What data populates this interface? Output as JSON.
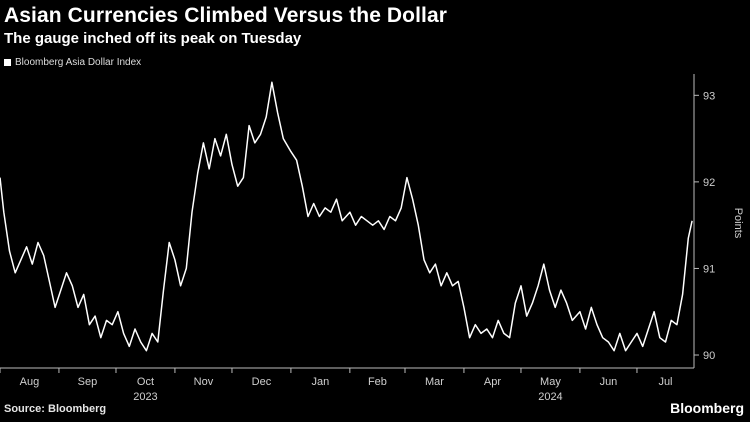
{
  "chart_data": {
    "type": "line",
    "title": "Asian Currencies Climbed Versus the Dollar",
    "subtitle": "The gauge inched off its peak on Tuesday",
    "legend": [
      "Bloomberg Asia Dollar Index"
    ],
    "legend_position": "top-left",
    "ylabel": "Points",
    "ylim": [
      89.85,
      93.2
    ],
    "yticks": [
      90,
      91,
      92,
      93
    ],
    "grid": false,
    "xlim": [
      "2023-08-01",
      "2024-07-31"
    ],
    "month_labels": [
      "Aug",
      "Sep",
      "Oct",
      "Nov",
      "Dec",
      "Jan",
      "Feb",
      "Mar",
      "Apr",
      "May",
      "Jun",
      "Jul"
    ],
    "month_dates": [
      "2023-08-01",
      "2023-09-01",
      "2023-10-01",
      "2023-11-01",
      "2023-12-01",
      "2024-01-01",
      "2024-02-01",
      "2024-03-01",
      "2024-04-01",
      "2024-05-01",
      "2024-06-01",
      "2024-07-01"
    ],
    "year_labels": [
      {
        "label": "2023",
        "date": "2023-10-01"
      },
      {
        "label": "2024",
        "date": "2024-05-01"
      }
    ],
    "series": [
      {
        "name": "Bloomberg Asia Dollar Index",
        "color": "#ffffff",
        "x": [
          "2023-08-01",
          "2023-08-03",
          "2023-08-06",
          "2023-08-09",
          "2023-08-12",
          "2023-08-15",
          "2023-08-18",
          "2023-08-21",
          "2023-08-24",
          "2023-08-27",
          "2023-08-30",
          "2023-09-02",
          "2023-09-05",
          "2023-09-08",
          "2023-09-11",
          "2023-09-14",
          "2023-09-17",
          "2023-09-20",
          "2023-09-23",
          "2023-09-26",
          "2023-09-29",
          "2023-10-02",
          "2023-10-05",
          "2023-10-08",
          "2023-10-11",
          "2023-10-14",
          "2023-10-17",
          "2023-10-20",
          "2023-10-23",
          "2023-10-26",
          "2023-10-29",
          "2023-11-01",
          "2023-11-04",
          "2023-11-07",
          "2023-11-10",
          "2023-11-13",
          "2023-11-16",
          "2023-11-19",
          "2023-11-22",
          "2023-11-25",
          "2023-11-28",
          "2023-12-01",
          "2023-12-04",
          "2023-12-07",
          "2023-12-10",
          "2023-12-13",
          "2023-12-16",
          "2023-12-19",
          "2023-12-22",
          "2023-12-25",
          "2023-12-28",
          "2024-01-01",
          "2024-01-04",
          "2024-01-07",
          "2024-01-10",
          "2024-01-13",
          "2024-01-16",
          "2024-01-19",
          "2024-01-22",
          "2024-01-25",
          "2024-01-28",
          "2024-02-01",
          "2024-02-04",
          "2024-02-07",
          "2024-02-10",
          "2024-02-13",
          "2024-02-16",
          "2024-02-19",
          "2024-02-22",
          "2024-02-25",
          "2024-02-28",
          "2024-03-02",
          "2024-03-05",
          "2024-03-08",
          "2024-03-11",
          "2024-03-14",
          "2024-03-17",
          "2024-03-20",
          "2024-03-23",
          "2024-03-26",
          "2024-03-29",
          "2024-04-01",
          "2024-04-04",
          "2024-04-07",
          "2024-04-10",
          "2024-04-13",
          "2024-04-16",
          "2024-04-19",
          "2024-04-22",
          "2024-04-25",
          "2024-04-28",
          "2024-05-01",
          "2024-05-04",
          "2024-05-07",
          "2024-05-10",
          "2024-05-13",
          "2024-05-16",
          "2024-05-19",
          "2024-05-22",
          "2024-05-25",
          "2024-05-28",
          "2024-06-01",
          "2024-06-04",
          "2024-06-07",
          "2024-06-10",
          "2024-06-13",
          "2024-06-16",
          "2024-06-19",
          "2024-06-22",
          "2024-06-25",
          "2024-06-28",
          "2024-07-01",
          "2024-07-04",
          "2024-07-07",
          "2024-07-10",
          "2024-07-13",
          "2024-07-16",
          "2024-07-19",
          "2024-07-22",
          "2024-07-25",
          "2024-07-28",
          "2024-07-30"
        ],
        "values": [
          92.05,
          91.65,
          91.2,
          90.95,
          91.1,
          91.25,
          91.05,
          91.3,
          91.15,
          90.85,
          90.55,
          90.75,
          90.95,
          90.8,
          90.55,
          90.7,
          90.35,
          90.45,
          90.2,
          90.4,
          90.35,
          90.5,
          90.25,
          90.1,
          90.3,
          90.15,
          90.05,
          90.25,
          90.15,
          90.75,
          91.3,
          91.1,
          90.8,
          91.0,
          91.65,
          92.1,
          92.45,
          92.15,
          92.5,
          92.3,
          92.55,
          92.2,
          91.95,
          92.05,
          92.65,
          92.45,
          92.55,
          92.75,
          93.15,
          92.8,
          92.5,
          92.35,
          92.25,
          91.95,
          91.6,
          91.75,
          91.6,
          91.7,
          91.65,
          91.8,
          91.55,
          91.65,
          91.5,
          91.6,
          91.55,
          91.5,
          91.55,
          91.45,
          91.6,
          91.55,
          91.7,
          92.05,
          91.8,
          91.5,
          91.1,
          90.95,
          91.05,
          90.8,
          90.95,
          90.8,
          90.85,
          90.55,
          90.2,
          90.35,
          90.25,
          90.3,
          90.2,
          90.4,
          90.25,
          90.2,
          90.6,
          90.8,
          90.45,
          90.6,
          90.8,
          91.05,
          90.75,
          90.55,
          90.75,
          90.6,
          90.4,
          90.5,
          90.3,
          90.55,
          90.35,
          90.2,
          90.15,
          90.05,
          90.25,
          90.05,
          90.15,
          90.25,
          90.1,
          90.3,
          90.5,
          90.2,
          90.15,
          90.4,
          90.35,
          90.7,
          91.35,
          91.55
        ]
      }
    ]
  },
  "footer": {
    "source": "Source: Bloomberg",
    "brand": "Bloomberg"
  }
}
